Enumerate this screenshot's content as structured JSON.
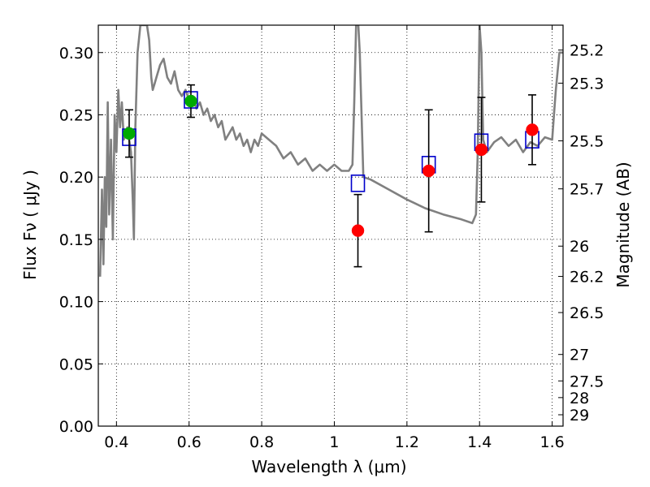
{
  "chart_data": {
    "type": "scatter",
    "xlabel": "Wavelength  λ (μm)",
    "ylabel": "Flux  Fν  ( μJy )",
    "y2label": "Magnitude (AB)",
    "xlim": [
      0.35,
      1.63
    ],
    "ylim": [
      0.0,
      0.322
    ],
    "grid": true,
    "x_ticks": [
      {
        "value": 0.4,
        "label": "0.4"
      },
      {
        "value": 0.6,
        "label": "0.6"
      },
      {
        "value": 0.8,
        "label": "0.8"
      },
      {
        "value": 1.0,
        "label": "1"
      },
      {
        "value": 1.2,
        "label": "1.2"
      },
      {
        "value": 1.4,
        "label": "1.4"
      },
      {
        "value": 1.6,
        "label": "1.6"
      }
    ],
    "y_ticks": [
      {
        "value": 0.0,
        "label": "0.00"
      },
      {
        "value": 0.05,
        "label": "0.05"
      },
      {
        "value": 0.1,
        "label": "0.10"
      },
      {
        "value": 0.15,
        "label": "0.15"
      },
      {
        "value": 0.2,
        "label": "0.20"
      },
      {
        "value": 0.25,
        "label": "0.25"
      },
      {
        "value": 0.3,
        "label": "0.30"
      }
    ],
    "mag_ticks": [
      {
        "value": 25.2,
        "label": "25.2"
      },
      {
        "value": 25.3,
        "label": "25.3"
      },
      {
        "value": 25.5,
        "label": "25.5"
      },
      {
        "value": 25.7,
        "label": "25.7"
      },
      {
        "value": 26.0,
        "label": "26"
      },
      {
        "value": 26.2,
        "label": "26.2"
      },
      {
        "value": 26.5,
        "label": "26.5"
      },
      {
        "value": 27.0,
        "label": "27"
      },
      {
        "value": 27.5,
        "label": "27.5"
      },
      {
        "value": 28.0,
        "label": "28"
      },
      {
        "value": 29.0,
        "label": "29"
      }
    ],
    "series": [
      {
        "kind": "model_spectrum",
        "color": "#808080",
        "x": [
          0.355,
          0.36,
          0.364,
          0.368,
          0.372,
          0.376,
          0.38,
          0.385,
          0.39,
          0.395,
          0.4,
          0.405,
          0.41,
          0.415,
          0.42,
          0.43,
          0.44,
          0.445,
          0.448,
          0.452,
          0.458,
          0.466,
          0.472,
          0.478,
          0.484,
          0.49,
          0.496,
          0.5,
          0.505,
          0.51,
          0.52,
          0.53,
          0.54,
          0.55,
          0.56,
          0.57,
          0.58,
          0.59,
          0.6,
          0.61,
          0.62,
          0.63,
          0.64,
          0.65,
          0.66,
          0.67,
          0.68,
          0.69,
          0.7,
          0.71,
          0.72,
          0.73,
          0.74,
          0.75,
          0.76,
          0.77,
          0.78,
          0.79,
          0.8,
          0.82,
          0.84,
          0.86,
          0.88,
          0.9,
          0.92,
          0.94,
          0.96,
          0.98,
          1.0,
          1.02,
          1.04,
          1.05,
          1.055,
          1.06,
          1.063,
          1.066,
          1.07,
          1.075,
          1.08,
          1.1,
          1.15,
          1.2,
          1.25,
          1.3,
          1.35,
          1.38,
          1.39,
          1.395,
          1.4,
          1.405,
          1.41,
          1.42,
          1.44,
          1.46,
          1.48,
          1.5,
          1.52,
          1.54,
          1.56,
          1.58,
          1.6,
          1.605,
          1.61,
          1.62,
          1.63
        ],
        "y": [
          0.12,
          0.19,
          0.13,
          0.2,
          0.16,
          0.26,
          0.17,
          0.23,
          0.15,
          0.25,
          0.22,
          0.27,
          0.24,
          0.26,
          0.23,
          0.24,
          0.22,
          0.18,
          0.15,
          0.24,
          0.3,
          0.322,
          0.322,
          0.322,
          0.322,
          0.31,
          0.28,
          0.27,
          0.275,
          0.28,
          0.29,
          0.295,
          0.28,
          0.275,
          0.285,
          0.27,
          0.265,
          0.27,
          0.262,
          0.265,
          0.255,
          0.26,
          0.25,
          0.255,
          0.245,
          0.25,
          0.24,
          0.245,
          0.23,
          0.235,
          0.24,
          0.23,
          0.235,
          0.225,
          0.23,
          0.22,
          0.23,
          0.225,
          0.235,
          0.23,
          0.225,
          0.215,
          0.22,
          0.21,
          0.215,
          0.205,
          0.21,
          0.205,
          0.21,
          0.205,
          0.205,
          0.21,
          0.26,
          0.322,
          0.322,
          0.322,
          0.3,
          0.25,
          0.2,
          0.198,
          0.19,
          0.182,
          0.175,
          0.17,
          0.166,
          0.163,
          0.17,
          0.22,
          0.322,
          0.3,
          0.23,
          0.22,
          0.228,
          0.232,
          0.225,
          0.23,
          0.22,
          0.228,
          0.225,
          0.232,
          0.23,
          0.25,
          0.27,
          0.3,
          0.3
        ]
      },
      {
        "kind": "model_bandpass",
        "marker": "open-square",
        "color": "#0000cc",
        "x": [
          0.435,
          0.605,
          1.065,
          1.26,
          1.405,
          1.545
        ],
        "y": [
          0.232,
          0.262,
          0.195,
          0.21,
          0.228,
          0.23
        ]
      },
      {
        "kind": "observed_optical",
        "marker": "circle",
        "color": "#00aa00",
        "x": [
          0.435,
          0.605
        ],
        "y": [
          0.235,
          0.261
        ],
        "err": [
          0.019,
          0.013
        ]
      },
      {
        "kind": "observed_nir",
        "marker": "circle",
        "color": "#ff0000",
        "x": [
          1.065,
          1.26,
          1.405,
          1.545
        ],
        "y": [
          0.157,
          0.205,
          0.222,
          0.238
        ],
        "err": [
          0.029,
          0.049,
          0.042,
          0.028
        ]
      }
    ]
  }
}
